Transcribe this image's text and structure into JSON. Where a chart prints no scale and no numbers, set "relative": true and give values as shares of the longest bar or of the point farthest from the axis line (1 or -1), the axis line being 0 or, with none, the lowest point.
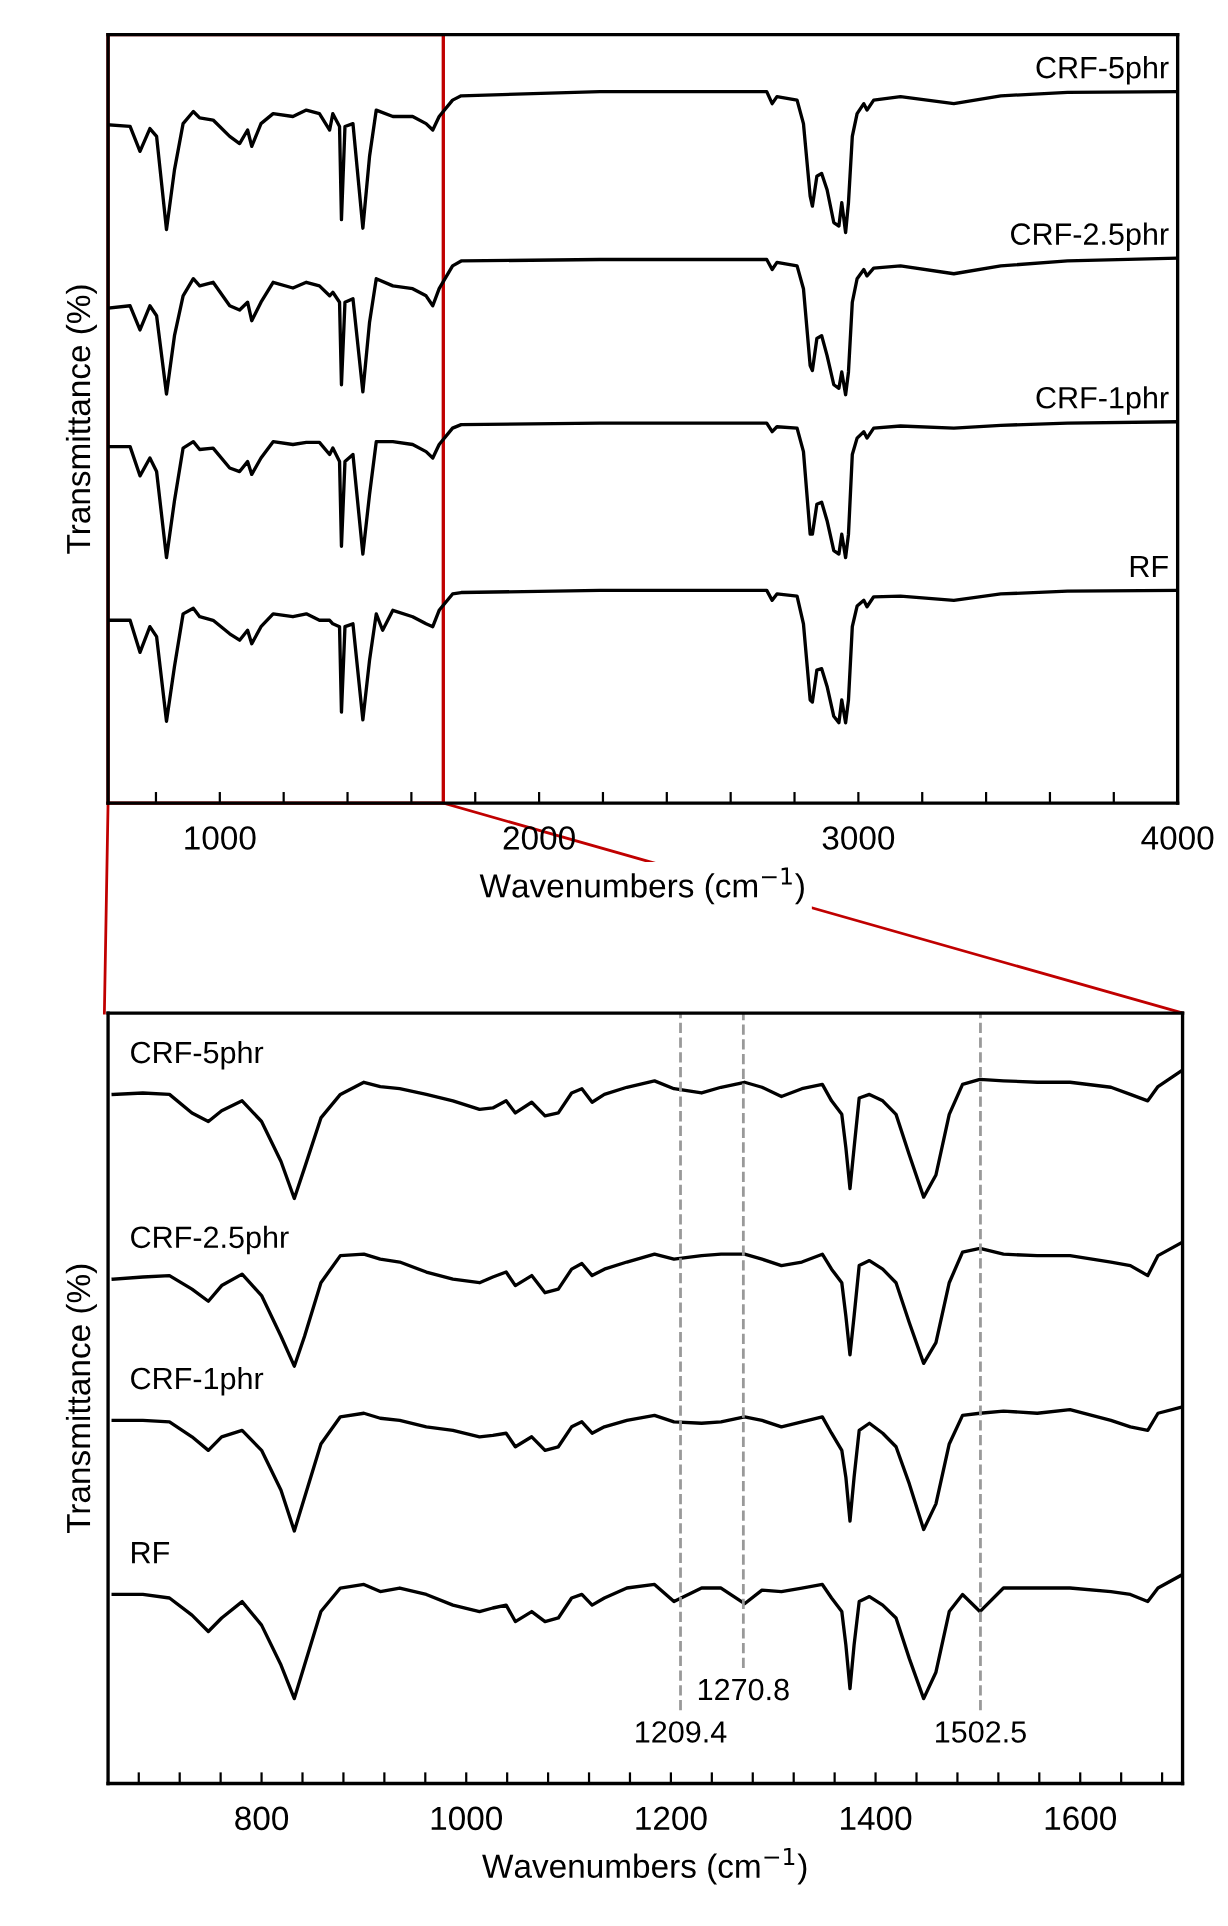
{
  "chart_data": [
    {
      "type": "line",
      "xlabel": "Wavenumbers (cm$^{−1}$)",
      "ylabel": "Transmittance (%)",
      "relative": true,
      "xlim": [
        650,
        4000
      ],
      "xticks": [
        {
          "value": 800,
          "label": null
        },
        1000,
        {
          "value": 1200,
          "label": null
        },
        {
          "value": 1400,
          "label": null
        },
        {
          "value": 1600,
          "label": null
        },
        {
          "value": 1800,
          "label": null
        },
        2000,
        {
          "value": 2200,
          "label": null
        },
        {
          "value": 2400,
          "label": null
        },
        {
          "value": 2600,
          "label": null
        },
        {
          "value": 2800,
          "label": null
        },
        3000,
        {
          "value": 3200,
          "label": null
        },
        {
          "value": 3400,
          "label": null
        },
        {
          "value": 3600,
          "label": null
        },
        {
          "value": 3800,
          "label": null
        },
        4000
      ],
      "series": [
        {
          "name": "CRF-5phr",
          "color": "#000000",
          "x": [
            656,
            719,
            750,
            781,
            802,
            833,
            858,
            885,
            917,
            937,
            979,
            1031,
            1062,
            1087,
            1100,
            1129,
            1167,
            1229,
            1271,
            1312,
            1344,
            1354,
            1375,
            1381,
            1392,
            1417,
            1448,
            1469,
            1490,
            1542,
            1604,
            1646,
            1667,
            1687,
            1729,
            1756,
            2190,
            2713,
            2730,
            2745,
            2808,
            2828,
            2849,
            2856,
            2870,
            2885,
            2902,
            2923,
            2939,
            2948,
            2960,
            2969,
            2981,
            2996,
            3017,
            3027,
            3048,
            3132,
            3299,
            3446,
            3655,
            4000
          ],
          "values": [
            0.953,
            0.951,
            0.916,
            0.948,
            0.937,
            0.806,
            0.89,
            0.955,
            0.972,
            0.963,
            0.96,
            0.937,
            0.927,
            0.946,
            0.923,
            0.955,
            0.969,
            0.965,
            0.974,
            0.969,
            0.946,
            0.969,
            0.951,
            0.82,
            0.951,
            0.955,
            0.808,
            0.909,
            0.974,
            0.965,
            0.965,
            0.955,
            0.946,
            0.965,
            0.988,
            0.994,
            1.0,
            1.0,
            0.983,
            0.993,
            0.988,
            0.955,
            0.853,
            0.839,
            0.881,
            0.885,
            0.862,
            0.816,
            0.811,
            0.844,
            0.802,
            0.844,
            0.937,
            0.969,
            0.983,
            0.974,
            0.988,
            0.993,
            0.983,
            0.994,
            0.999,
            1.0
          ]
        },
        {
          "name": "CRF-2.5phr",
          "color": "#000000",
          "x": [
            656,
            719,
            750,
            781,
            802,
            833,
            858,
            885,
            917,
            937,
            979,
            1031,
            1062,
            1087,
            1100,
            1129,
            1167,
            1229,
            1271,
            1312,
            1344,
            1354,
            1375,
            1381,
            1392,
            1417,
            1448,
            1469,
            1490,
            1542,
            1604,
            1646,
            1667,
            1687,
            1729,
            1756,
            2190,
            2713,
            2730,
            2745,
            2808,
            2828,
            2849,
            2856,
            2870,
            2885,
            2902,
            2923,
            2939,
            2948,
            2960,
            2969,
            2981,
            2996,
            3017,
            3027,
            3048,
            3132,
            3299,
            3446,
            3655,
            4000
          ],
          "values": [
            0.696,
            0.699,
            0.665,
            0.699,
            0.685,
            0.575,
            0.657,
            0.713,
            0.737,
            0.727,
            0.732,
            0.699,
            0.693,
            0.704,
            0.678,
            0.704,
            0.732,
            0.724,
            0.732,
            0.727,
            0.713,
            0.718,
            0.704,
            0.588,
            0.704,
            0.709,
            0.578,
            0.676,
            0.737,
            0.727,
            0.723,
            0.713,
            0.699,
            0.723,
            0.755,
            0.762,
            0.764,
            0.764,
            0.75,
            0.76,
            0.755,
            0.723,
            0.615,
            0.608,
            0.653,
            0.657,
            0.629,
            0.588,
            0.583,
            0.606,
            0.574,
            0.606,
            0.704,
            0.737,
            0.75,
            0.741,
            0.752,
            0.755,
            0.744,
            0.755,
            0.762,
            0.766
          ]
        },
        {
          "name": "CRF-1phr",
          "color": "#000000",
          "x": [
            656,
            719,
            750,
            781,
            802,
            833,
            858,
            885,
            917,
            937,
            979,
            1031,
            1062,
            1087,
            1100,
            1129,
            1167,
            1229,
            1271,
            1312,
            1344,
            1354,
            1375,
            1381,
            1392,
            1417,
            1448,
            1469,
            1490,
            1542,
            1604,
            1646,
            1667,
            1687,
            1729,
            1756,
            2190,
            2713,
            2730,
            2745,
            2808,
            2828,
            2849,
            2856,
            2870,
            2885,
            2902,
            2923,
            2939,
            2948,
            2960,
            2969,
            2981,
            2996,
            3017,
            3027,
            3048,
            3132,
            3299,
            3446,
            3655,
            4000
          ],
          "values": [
            0.501,
            0.501,
            0.46,
            0.485,
            0.466,
            0.345,
            0.425,
            0.499,
            0.508,
            0.497,
            0.499,
            0.471,
            0.466,
            0.48,
            0.462,
            0.485,
            0.508,
            0.504,
            0.507,
            0.507,
            0.49,
            0.499,
            0.48,
            0.361,
            0.48,
            0.49,
            0.35,
            0.434,
            0.508,
            0.508,
            0.504,
            0.494,
            0.485,
            0.504,
            0.527,
            0.532,
            0.534,
            0.534,
            0.522,
            0.529,
            0.527,
            0.494,
            0.378,
            0.378,
            0.42,
            0.423,
            0.397,
            0.355,
            0.35,
            0.378,
            0.345,
            0.378,
            0.49,
            0.513,
            0.522,
            0.513,
            0.527,
            0.53,
            0.527,
            0.531,
            0.534,
            0.536
          ]
        },
        {
          "name": "RF",
          "color": "#000000",
          "x": [
            656,
            719,
            750,
            781,
            802,
            833,
            858,
            885,
            917,
            937,
            979,
            1031,
            1062,
            1087,
            1100,
            1129,
            1167,
            1229,
            1271,
            1312,
            1344,
            1354,
            1375,
            1381,
            1392,
            1417,
            1448,
            1469,
            1490,
            1510,
            1542,
            1604,
            1646,
            1667,
            1687,
            1729,
            1756,
            2190,
            2713,
            2730,
            2745,
            2808,
            2828,
            2849,
            2856,
            2870,
            2885,
            2902,
            2923,
            2939,
            2948,
            2960,
            2969,
            2981,
            2996,
            3017,
            3027,
            3048,
            3132,
            3299,
            3446,
            3655,
            4000
          ],
          "values": [
            0.257,
            0.257,
            0.212,
            0.248,
            0.234,
            0.115,
            0.192,
            0.266,
            0.274,
            0.262,
            0.257,
            0.238,
            0.229,
            0.243,
            0.224,
            0.248,
            0.266,
            0.262,
            0.266,
            0.257,
            0.257,
            0.252,
            0.248,
            0.128,
            0.248,
            0.252,
            0.117,
            0.201,
            0.266,
            0.243,
            0.271,
            0.262,
            0.252,
            0.248,
            0.271,
            0.294,
            0.296,
            0.299,
            0.299,
            0.285,
            0.294,
            0.291,
            0.252,
            0.145,
            0.142,
            0.187,
            0.189,
            0.164,
            0.122,
            0.113,
            0.145,
            0.113,
            0.145,
            0.248,
            0.277,
            0.285,
            0.276,
            0.29,
            0.291,
            0.285,
            0.294,
            0.298,
            0.299
          ]
        }
      ]
    },
    {
      "type": "line",
      "xlabel": "Wavenumbers (cm$^{−1}$)",
      "ylabel": "Transmittance (%)",
      "relative": true,
      "xlim": [
        650,
        1700
      ],
      "xticks": [
        {
          "value": 680,
          "label": null
        },
        {
          "value": 720,
          "label": null
        },
        {
          "value": 760,
          "label": null
        },
        800,
        {
          "value": 840,
          "label": null
        },
        {
          "value": 880,
          "label": null
        },
        {
          "value": 920,
          "label": null
        },
        {
          "value": 960,
          "label": null
        },
        1000,
        {
          "value": 1040,
          "label": null
        },
        {
          "value": 1080,
          "label": null
        },
        {
          "value": 1120,
          "label": null
        },
        {
          "value": 1160,
          "label": null
        },
        1200,
        {
          "value": 1240,
          "label": null
        },
        {
          "value": 1280,
          "label": null
        },
        {
          "value": 1320,
          "label": null
        },
        {
          "value": 1360,
          "label": null
        },
        1400,
        {
          "value": 1440,
          "label": null
        },
        {
          "value": 1480,
          "label": null
        },
        {
          "value": 1520,
          "label": null
        },
        {
          "value": 1560,
          "label": null
        },
        1600,
        {
          "value": 1640,
          "label": null
        },
        {
          "value": 1680,
          "label": null
        }
      ],
      "ref_lines": [
        {
          "axis": "x",
          "value": 1209.4,
          "label": "1209.4",
          "color": "#999999",
          "line_style": "dashed"
        },
        {
          "axis": "x",
          "value": 1270.8,
          "label": "1270.8",
          "color": "#999999",
          "line_style": "dashed"
        },
        {
          "axis": "x",
          "value": 1502.5,
          "label": "1502.5",
          "color": "#999999",
          "line_style": "dashed"
        }
      ],
      "series": [
        {
          "name": "CRF-5phr",
          "color": "#000000",
          "x": [
            655,
            684,
            710,
            732,
            748,
            761,
            781,
            800,
            819,
            832,
            842,
            858,
            877,
            900,
            916,
            935,
            961,
            987,
            1013,
            1026,
            1039,
            1048,
            1064,
            1077,
            1090,
            1103,
            1113,
            1123,
            1135,
            1157,
            1184,
            1203,
            1230,
            1249,
            1272,
            1289,
            1308,
            1328,
            1348,
            1357,
            1367,
            1371,
            1375,
            1379,
            1384,
            1394,
            1407,
            1420,
            1433,
            1447,
            1459,
            1472,
            1485,
            1502,
            1525,
            1558,
            1590,
            1630,
            1649,
            1666,
            1676,
            1700
          ],
          "values": [
            0.966,
            0.968,
            0.966,
            0.94,
            0.928,
            0.943,
            0.957,
            0.928,
            0.872,
            0.82,
            0.863,
            0.933,
            0.966,
            0.983,
            0.977,
            0.974,
            0.966,
            0.957,
            0.945,
            0.947,
            0.957,
            0.94,
            0.955,
            0.936,
            0.94,
            0.968,
            0.974,
            0.955,
            0.966,
            0.976,
            0.985,
            0.974,
            0.968,
            0.976,
            0.983,
            0.976,
            0.963,
            0.974,
            0.98,
            0.957,
            0.938,
            0.891,
            0.834,
            0.891,
            0.961,
            0.966,
            0.957,
            0.938,
            0.881,
            0.822,
            0.853,
            0.938,
            0.98,
            0.987,
            0.985,
            0.983,
            0.983,
            0.976,
            0.966,
            0.957,
            0.977,
            1.0
          ]
        },
        {
          "name": "CRF-2.5phr",
          "color": "#000000",
          "x": [
            655,
            684,
            710,
            732,
            748,
            761,
            781,
            800,
            819,
            832,
            842,
            858,
            877,
            900,
            916,
            935,
            961,
            987,
            1013,
            1026,
            1039,
            1048,
            1064,
            1077,
            1090,
            1103,
            1113,
            1123,
            1135,
            1157,
            1184,
            1203,
            1230,
            1249,
            1272,
            1289,
            1308,
            1328,
            1348,
            1357,
            1367,
            1371,
            1375,
            1379,
            1384,
            1394,
            1407,
            1420,
            1433,
            1447,
            1459,
            1472,
            1485,
            1502,
            1525,
            1558,
            1590,
            1630,
            1649,
            1666,
            1676,
            1700
          ],
          "values": [
            0.707,
            0.71,
            0.712,
            0.693,
            0.676,
            0.698,
            0.714,
            0.684,
            0.627,
            0.585,
            0.627,
            0.702,
            0.74,
            0.742,
            0.735,
            0.731,
            0.717,
            0.707,
            0.702,
            0.71,
            0.717,
            0.698,
            0.712,
            0.688,
            0.693,
            0.721,
            0.729,
            0.712,
            0.721,
            0.731,
            0.742,
            0.735,
            0.74,
            0.742,
            0.742,
            0.735,
            0.726,
            0.731,
            0.742,
            0.721,
            0.702,
            0.655,
            0.601,
            0.655,
            0.726,
            0.733,
            0.721,
            0.702,
            0.646,
            0.589,
            0.618,
            0.702,
            0.745,
            0.75,
            0.742,
            0.74,
            0.74,
            0.731,
            0.726,
            0.712,
            0.74,
            0.759
          ]
        },
        {
          "name": "CRF-1phr",
          "color": "#000000",
          "x": [
            655,
            684,
            710,
            732,
            748,
            761,
            781,
            800,
            819,
            832,
            842,
            858,
            877,
            900,
            916,
            935,
            961,
            987,
            1013,
            1026,
            1039,
            1048,
            1064,
            1077,
            1090,
            1103,
            1113,
            1123,
            1135,
            1157,
            1184,
            1203,
            1230,
            1249,
            1272,
            1289,
            1308,
            1328,
            1348,
            1357,
            1367,
            1371,
            1375,
            1379,
            1384,
            1394,
            1407,
            1420,
            1433,
            1447,
            1459,
            1472,
            1485,
            1502,
            1525,
            1558,
            1590,
            1630,
            1649,
            1666,
            1676,
            1700
          ],
          "values": [
            0.509,
            0.509,
            0.507,
            0.486,
            0.467,
            0.486,
            0.495,
            0.467,
            0.411,
            0.354,
            0.401,
            0.476,
            0.514,
            0.519,
            0.512,
            0.509,
            0.5,
            0.495,
            0.486,
            0.488,
            0.491,
            0.472,
            0.486,
            0.467,
            0.472,
            0.5,
            0.507,
            0.491,
            0.5,
            0.509,
            0.516,
            0.507,
            0.505,
            0.507,
            0.514,
            0.509,
            0.5,
            0.507,
            0.514,
            0.491,
            0.467,
            0.429,
            0.368,
            0.429,
            0.495,
            0.505,
            0.491,
            0.472,
            0.42,
            0.356,
            0.392,
            0.476,
            0.516,
            0.519,
            0.522,
            0.519,
            0.524,
            0.509,
            0.5,
            0.495,
            0.519,
            0.528
          ]
        },
        {
          "name": "RF",
          "color": "#000000",
          "x": [
            655,
            684,
            710,
            732,
            748,
            761,
            781,
            800,
            819,
            832,
            842,
            858,
            877,
            900,
            916,
            935,
            961,
            987,
            1013,
            1026,
            1039,
            1048,
            1064,
            1077,
            1090,
            1103,
            1113,
            1123,
            1135,
            1157,
            1184,
            1203,
            1230,
            1249,
            1272,
            1289,
            1308,
            1328,
            1348,
            1357,
            1367,
            1371,
            1375,
            1379,
            1384,
            1394,
            1407,
            1420,
            1433,
            1447,
            1459,
            1472,
            1485,
            1502,
            1525,
            1558,
            1590,
            1630,
            1649,
            1666,
            1676,
            1700
          ],
          "values": [
            0.265,
            0.265,
            0.26,
            0.236,
            0.213,
            0.232,
            0.255,
            0.222,
            0.166,
            0.119,
            0.166,
            0.241,
            0.274,
            0.279,
            0.269,
            0.274,
            0.265,
            0.25,
            0.241,
            0.246,
            0.25,
            0.227,
            0.241,
            0.227,
            0.232,
            0.26,
            0.265,
            0.25,
            0.26,
            0.274,
            0.279,
            0.255,
            0.274,
            0.274,
            0.252,
            0.271,
            0.269,
            0.274,
            0.279,
            0.26,
            0.241,
            0.194,
            0.133,
            0.194,
            0.255,
            0.262,
            0.25,
            0.232,
            0.175,
            0.119,
            0.156,
            0.241,
            0.265,
            0.241,
            0.274,
            0.274,
            0.274,
            0.269,
            0.265,
            0.255,
            0.274,
            0.293
          ]
        }
      ]
    }
  ]
}
